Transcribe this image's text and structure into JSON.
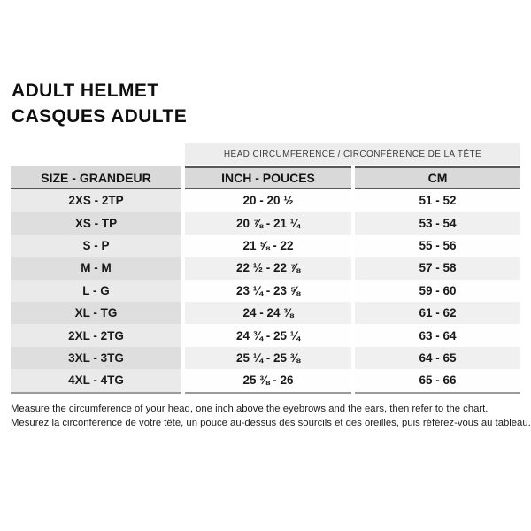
{
  "title": {
    "line1": "ADULT HELMET",
    "line2": "CASQUES ADULTE"
  },
  "table": {
    "span_header": "HEAD CIRCUMFERENCE / CIRCONFÉRENCE DE LA TÊTE",
    "columns": {
      "size": "SIZE - GRANDEUR",
      "inch": "INCH - POUCES",
      "cm": "CM"
    },
    "rows": [
      {
        "size": "2XS - 2TP",
        "inch": "20 - 20 ½",
        "cm": "51 - 52"
      },
      {
        "size": "XS - TP",
        "inch": "20 ⅞ - 21 ¼",
        "cm": "53 - 54"
      },
      {
        "size": "S - P",
        "inch": "21 ⅝ - 22",
        "cm": "55 - 56"
      },
      {
        "size": "M - M",
        "inch": "22 ½ - 22 ⅞",
        "cm": "57 - 58"
      },
      {
        "size": "L - G",
        "inch": "23 ¼ - 23 ⅝",
        "cm": "59 - 60"
      },
      {
        "size": "XL - TG",
        "inch": "24 - 24 ⅜",
        "cm": "61 - 62"
      },
      {
        "size": "2XL - 2TG",
        "inch": "24 ¾ - 25 ¼",
        "cm": "63 - 64"
      },
      {
        "size": "3XL - 3TG",
        "inch": "25 ¼ - 25 ⅜",
        "cm": "64 - 65"
      },
      {
        "size": "4XL - 4TG",
        "inch": "25 ⅜ - 26",
        "cm": "65 - 66"
      }
    ]
  },
  "footer": {
    "line1": "Measure the circumference of your head, one inch above the eyebrows and the ears, then refer to the chart.",
    "line2": "Mesurez la circonférence de votre tête, un pouce au-dessus des sourcils et des oreilles, puis référez-vous au tableau."
  },
  "colors": {
    "banner_bg": "#ededed",
    "header_bg": "#d9d9d9",
    "row_odd_size_bg": "#eaeaea",
    "row_even_size_bg": "#dedede",
    "row_even_val_bg": "#f0f0f0",
    "dark_border": "#575757",
    "bottom_border": "#9b9b9b",
    "text": "#111111"
  }
}
